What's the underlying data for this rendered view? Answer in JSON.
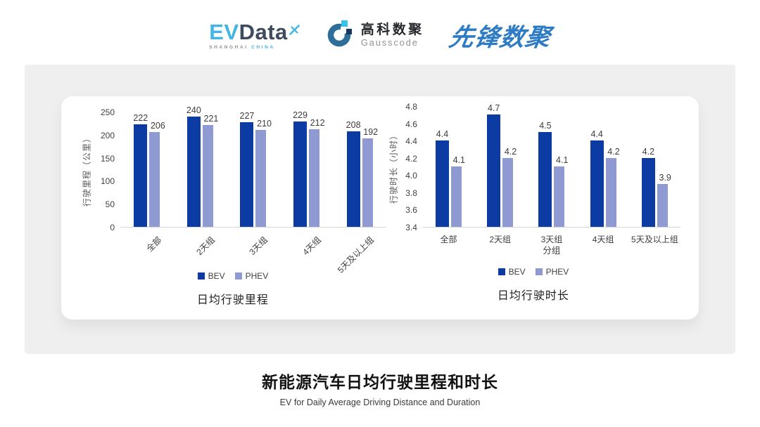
{
  "header": {
    "evdata": {
      "ev": "EV",
      "data": "Data",
      "sub_left": "SHANGHAI",
      "sub_right": "CHINA",
      "accent_color": "#41B5E5",
      "dark_color": "#3E4A5E"
    },
    "gausscode": {
      "cn": "高科数聚",
      "en": "Gausscode",
      "ring_color": "#2E6E99",
      "cyan_color": "#35C3E9",
      "navy_color": "#16395F"
    },
    "xianfeng": {
      "text": "先锋数聚",
      "color": "#2E7BC5"
    }
  },
  "chart_data": [
    {
      "type": "bar",
      "title": "日均行驶里程",
      "ylabel": "行驶里程（公里）",
      "xlabel": "",
      "categories": [
        "全部",
        "2天组",
        "3天组",
        "4天组",
        "5天及以上组"
      ],
      "series": [
        {
          "name": "BEV",
          "color": "#0B3BA3",
          "values": [
            222,
            240,
            227,
            229,
            208
          ]
        },
        {
          "name": "PHEV",
          "color": "#8E9AD1",
          "values": [
            206,
            221,
            210,
            212,
            192
          ]
        }
      ],
      "ylim": [
        0,
        250
      ],
      "ytick_step": 50,
      "ytick_decimals": 0,
      "value_decimals": 0,
      "grid": false,
      "legend_position": "bottom",
      "category_label_rotation": -45
    },
    {
      "type": "bar",
      "title": "日均行驶时长",
      "ylabel": "行驶时长（小时）",
      "xlabel": "分组",
      "categories": [
        "全部",
        "2天组",
        "3天组",
        "4天组",
        "5天及以上组"
      ],
      "series": [
        {
          "name": "BEV",
          "color": "#0B3BA3",
          "values": [
            4.4,
            4.7,
            4.5,
            4.4,
            4.2
          ]
        },
        {
          "name": "PHEV",
          "color": "#8E9AD1",
          "values": [
            4.1,
            4.2,
            4.1,
            4.2,
            3.9
          ]
        }
      ],
      "ylim": [
        3.4,
        4.8
      ],
      "ytick_step": 0.2,
      "ytick_decimals": 1,
      "value_decimals": 1,
      "grid": false,
      "legend_position": "bottom",
      "category_label_rotation": 0
    }
  ],
  "footer": {
    "title": "新能源汽车日均行驶里程和时长",
    "subtitle": "EV for Daily Average Driving Distance and Duration"
  }
}
